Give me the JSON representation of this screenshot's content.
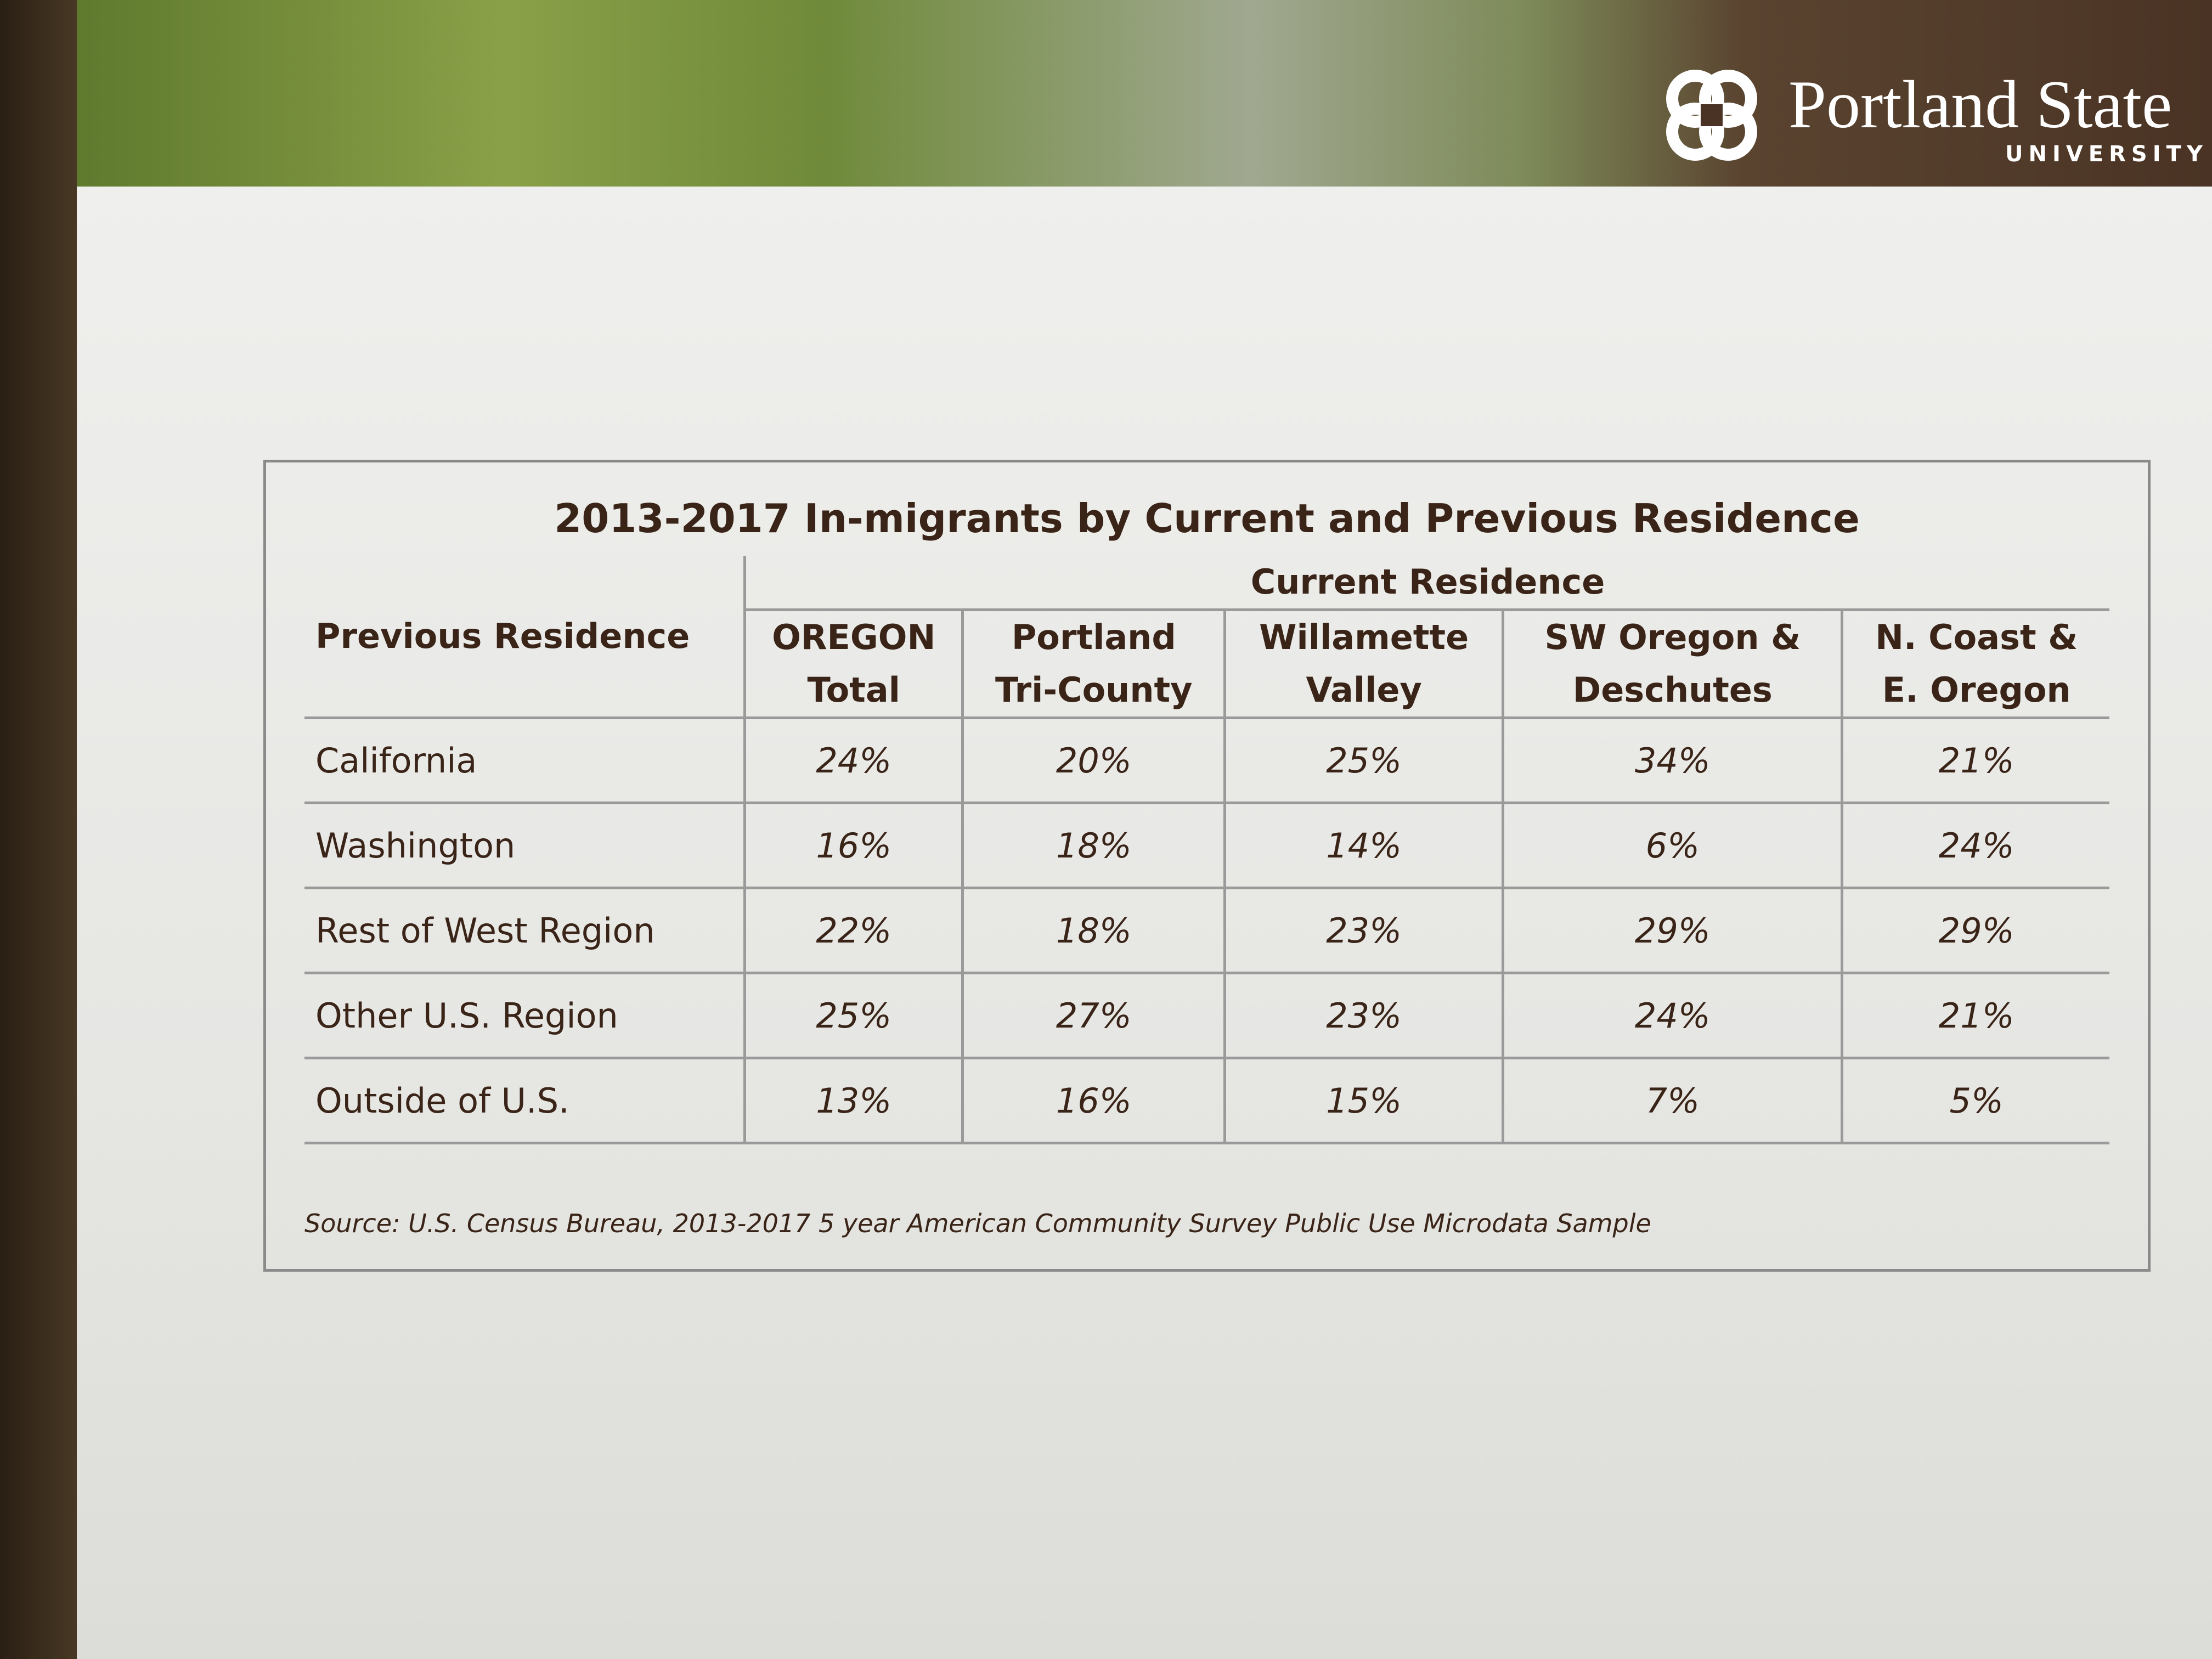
{
  "header": {
    "logo_name": "Portland State",
    "logo_sub": "UNIVERSITY"
  },
  "table": {
    "title": "2013-2017 In-migrants by Current and Previous Residence",
    "group_header": "Current Residence",
    "row_header": "Previous Residence",
    "columns": [
      [
        "OREGON",
        "Total"
      ],
      [
        "Portland",
        "Tri-County"
      ],
      [
        "Willamette",
        "Valley"
      ],
      [
        "SW Oregon &",
        "Deschutes"
      ],
      [
        "N. Coast &",
        "E. Oregon"
      ]
    ],
    "rows": [
      [
        "California",
        "24%",
        "20%",
        "25%",
        "34%",
        "21%"
      ],
      [
        "Washington",
        "16%",
        "18%",
        "14%",
        "6%",
        "24%"
      ],
      [
        "Rest of West Region",
        "22%",
        "18%",
        "23%",
        "29%",
        "29%"
      ],
      [
        "Other U.S. Region",
        "25%",
        "27%",
        "23%",
        "24%",
        "21%"
      ],
      [
        "Outside of U.S.",
        "13%",
        "16%",
        "15%",
        "7%",
        "5%"
      ]
    ],
    "source": "Source:  U.S. Census Bureau, 2013-2017 5 year American Community Survey Public Use Microdata Sample"
  }
}
